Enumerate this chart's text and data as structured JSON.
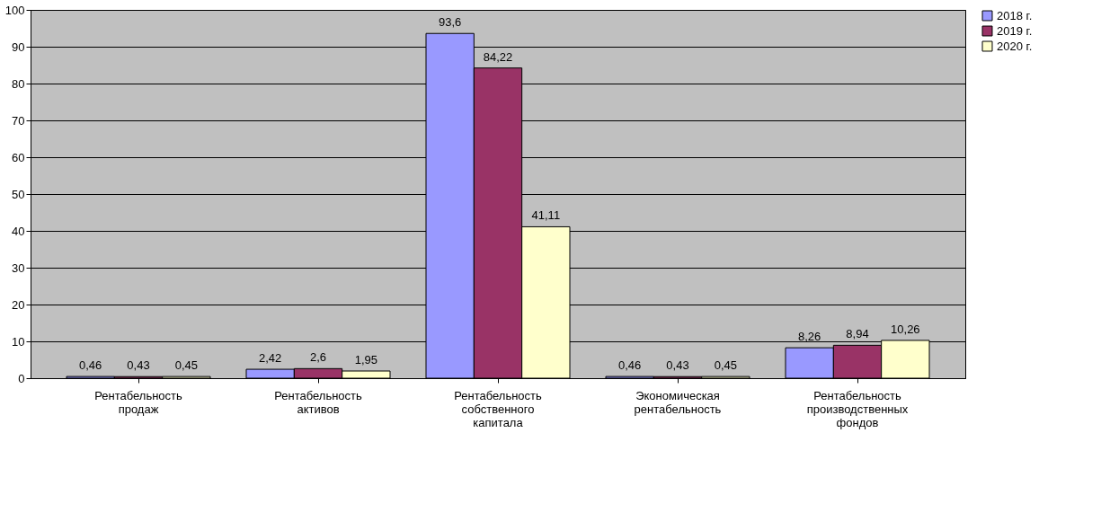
{
  "chart_data": {
    "type": "bar",
    "categories": [
      "Рентабельность продаж",
      "Рентабельность активов",
      "Рентабельность собственного капитала",
      "Экономическая рентабельность",
      "Рентабельность производственных фондов"
    ],
    "series": [
      {
        "name": "2018 г.",
        "color": "#9999ff",
        "values": [
          0.46,
          2.42,
          93.6,
          0.46,
          8.26
        ],
        "value_labels": [
          "0,46",
          "2,42",
          "93,6",
          "0,46",
          "8,26"
        ]
      },
      {
        "name": "2019 г.",
        "color": "#993366",
        "values": [
          0.43,
          2.6,
          84.22,
          0.43,
          8.94
        ],
        "value_labels": [
          "0,43",
          "2,6",
          "84,22",
          "0,43",
          "8,94"
        ]
      },
      {
        "name": "2020 г.",
        "color": "#ffffcc",
        "values": [
          0.45,
          1.95,
          41.11,
          0.45,
          10.26
        ],
        "value_labels": [
          "0,45",
          "1,95",
          "41,11",
          "0,45",
          "10,26"
        ]
      }
    ],
    "ylim": [
      0,
      100
    ],
    "yticks": [
      0,
      10,
      20,
      30,
      40,
      50,
      60,
      70,
      80,
      90,
      100
    ],
    "grid": "y",
    "legend": "right"
  }
}
